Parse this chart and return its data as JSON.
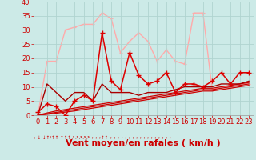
{
  "title": "",
  "xlabel": "Vent moyen/en rafales ( km/h )",
  "ylabel": "",
  "bg_color": "#cceae7",
  "grid_color": "#aacccc",
  "xlim": [
    -0.5,
    23.5
  ],
  "ylim": [
    0,
    40
  ],
  "yticks": [
    0,
    5,
    10,
    15,
    20,
    25,
    30,
    35,
    40
  ],
  "xticks": [
    0,
    1,
    2,
    3,
    4,
    5,
    6,
    7,
    8,
    9,
    10,
    11,
    12,
    13,
    14,
    15,
    16,
    17,
    18,
    19,
    20,
    21,
    22,
    23
  ],
  "series": [
    {
      "x": [
        0,
        1,
        2,
        3,
        4,
        5,
        6,
        7,
        8,
        9,
        10,
        11,
        12,
        13,
        14,
        15,
        16,
        17,
        18,
        19,
        20,
        21,
        22,
        23
      ],
      "y": [
        0,
        19,
        19,
        30,
        31,
        32,
        32,
        36,
        34,
        22,
        26,
        29,
        26,
        19,
        23,
        19,
        18,
        36,
        36,
        9,
        10,
        10,
        11,
        11
      ],
      "color": "#ffaaaa",
      "linewidth": 1.0,
      "marker": "+",
      "markersize": 3,
      "markeredgewidth": 0.8,
      "zorder": 1
    },
    {
      "x": [
        0,
        1,
        2,
        3,
        4,
        5,
        6,
        7,
        8,
        9,
        10,
        11,
        12,
        13,
        14,
        15,
        16,
        17,
        18,
        19,
        20,
        21,
        22,
        23
      ],
      "y": [
        1,
        4,
        3,
        0,
        5,
        7,
        5,
        29,
        12,
        9,
        22,
        14,
        11,
        12,
        15,
        8,
        11,
        11,
        10,
        12,
        15,
        11,
        15,
        15
      ],
      "color": "#dd0000",
      "linewidth": 1.1,
      "marker": "+",
      "markersize": 4,
      "markeredgewidth": 1.0,
      "zorder": 4
    },
    {
      "x": [
        0,
        1,
        2,
        3,
        4,
        5,
        6,
        7,
        8,
        9,
        10,
        11,
        12,
        13,
        14,
        15,
        16,
        17,
        18,
        19,
        20,
        21,
        22,
        23
      ],
      "y": [
        0,
        11,
        8,
        5,
        8,
        8,
        5,
        11,
        8,
        8,
        8,
        7,
        8,
        8,
        8,
        9,
        10,
        10,
        10,
        10,
        11,
        11,
        11,
        12
      ],
      "color": "#aa0000",
      "linewidth": 1.0,
      "marker": null,
      "zorder": 3
    },
    {
      "x": [
        0,
        1,
        2,
        3,
        4,
        5,
        6,
        7,
        8,
        9,
        10,
        11,
        12,
        13,
        14,
        15,
        16,
        17,
        18,
        19,
        20,
        21,
        22,
        23
      ],
      "y": [
        0,
        0.8,
        1.5,
        2.0,
        2.5,
        3.0,
        3.5,
        4.0,
        4.5,
        5.0,
        5.5,
        6.0,
        6.5,
        7.0,
        7.5,
        8.0,
        8.5,
        9.0,
        9.5,
        9.5,
        10.0,
        10.5,
        11.0,
        11.5
      ],
      "color": "#cc0000",
      "linewidth": 0.9,
      "marker": null,
      "zorder": 2
    },
    {
      "x": [
        0,
        1,
        2,
        3,
        4,
        5,
        6,
        7,
        8,
        9,
        10,
        11,
        12,
        13,
        14,
        15,
        16,
        17,
        18,
        19,
        20,
        21,
        22,
        23
      ],
      "y": [
        0,
        0.5,
        1.0,
        1.5,
        2.0,
        2.5,
        3.0,
        3.5,
        4.0,
        4.5,
        5.0,
        5.5,
        6.0,
        6.5,
        7.0,
        7.5,
        8.0,
        8.5,
        9.0,
        9.0,
        9.5,
        10.0,
        10.5,
        11.0
      ],
      "color": "#cc0000",
      "linewidth": 0.9,
      "marker": null,
      "zorder": 2
    },
    {
      "x": [
        0,
        1,
        2,
        3,
        4,
        5,
        6,
        7,
        8,
        9,
        10,
        11,
        12,
        13,
        14,
        15,
        16,
        17,
        18,
        19,
        20,
        21,
        22,
        23
      ],
      "y": [
        0,
        0.3,
        0.7,
        1.1,
        1.5,
        2.0,
        2.5,
        3.0,
        3.5,
        4.0,
        4.5,
        5.0,
        5.5,
        6.0,
        6.5,
        7.0,
        7.5,
        8.0,
        8.5,
        8.5,
        9.0,
        9.5,
        10.0,
        10.5
      ],
      "color": "#cc0000",
      "linewidth": 0.9,
      "marker": null,
      "zorder": 2
    }
  ],
  "xlabel_color": "#cc0000",
  "xlabel_fontsize": 8,
  "tick_fontsize": 6,
  "tick_color": "#cc0000",
  "xlabel_fontweight": "bold"
}
